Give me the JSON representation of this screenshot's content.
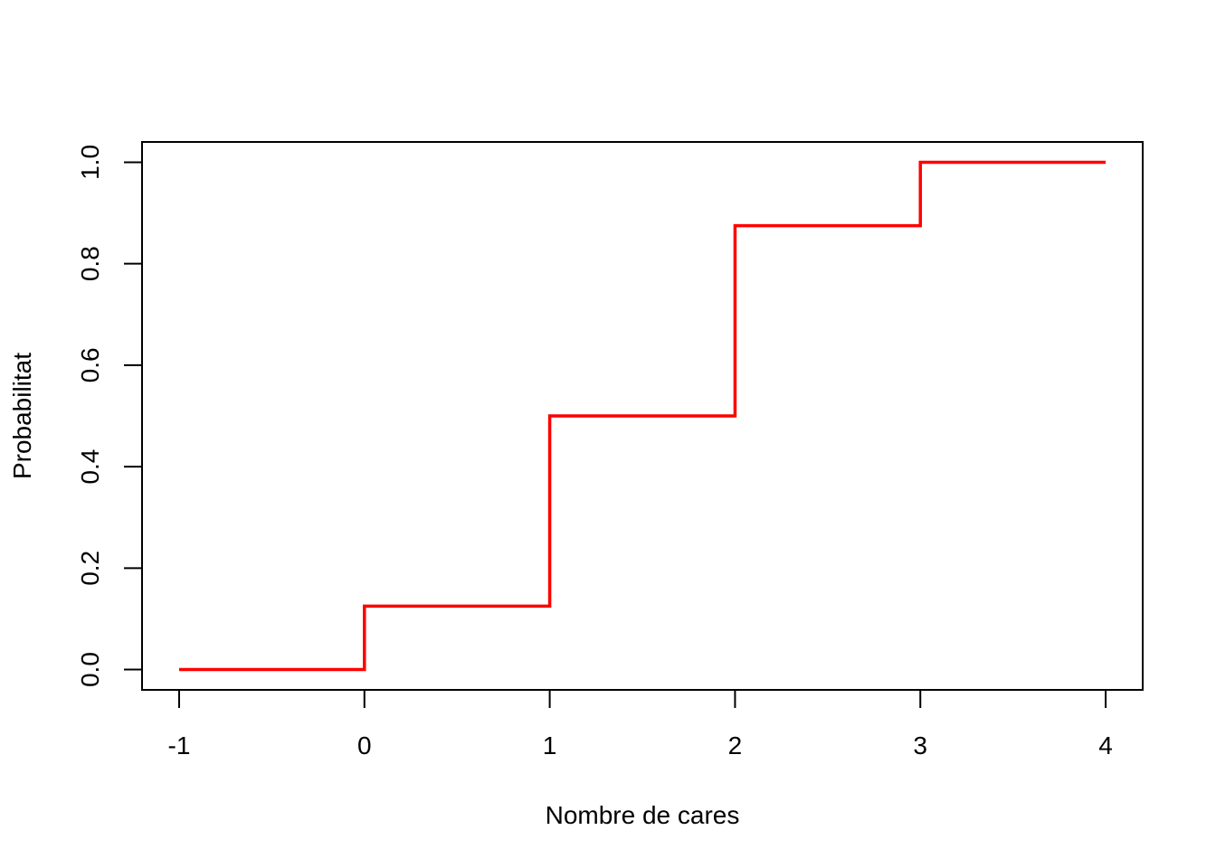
{
  "chart_data": {
    "type": "line",
    "step": true,
    "title": "",
    "xlabel": "Nombre de cares",
    "ylabel": "Probabilitat",
    "xlim": [
      -1.2,
      4.2
    ],
    "ylim": [
      -0.04,
      1.04
    ],
    "xticks": [
      -1,
      0,
      1,
      2,
      3,
      4
    ],
    "xtick_labels": [
      "-1",
      "0",
      "1",
      "2",
      "3",
      "4"
    ],
    "yticks": [
      0,
      0.2,
      0.4,
      0.6,
      0.8,
      1
    ],
    "ytick_labels": [
      "0.0",
      "0.2",
      "0.4",
      "0.6",
      "0.8",
      "1.0"
    ],
    "grid": false,
    "series": [
      {
        "color": "#ff0000",
        "x": [
          -1,
          0,
          1,
          2,
          3,
          4
        ],
        "y": [
          0,
          0.125,
          0.5,
          0.875,
          1,
          1
        ]
      }
    ]
  }
}
